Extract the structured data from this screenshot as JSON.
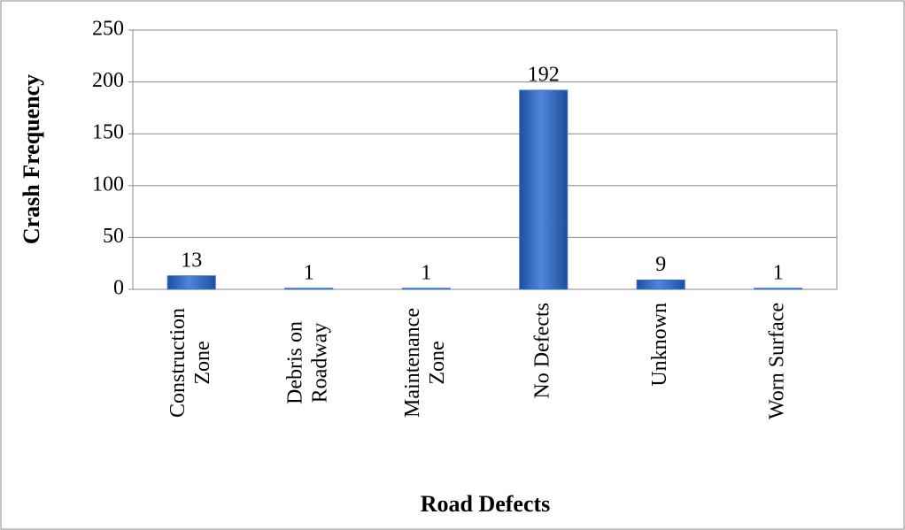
{
  "chart_data": {
    "type": "bar",
    "x_label": "Road Defects",
    "y_label": "Crash Frequency",
    "categories": [
      [
        "Construction",
        "Zone"
      ],
      [
        "Debris on",
        "Roadway"
      ],
      [
        "Maintenance",
        "Zone"
      ],
      [
        "No Defects"
      ],
      [
        "Unknown"
      ],
      [
        "Worn Surface"
      ]
    ],
    "values": [
      13,
      1,
      1,
      192,
      9,
      1
    ],
    "color": "#3a6fc4",
    "ylim": [
      0,
      250
    ],
    "yticks": [
      0,
      50,
      100,
      150,
      200,
      250
    ],
    "grid": true
  }
}
